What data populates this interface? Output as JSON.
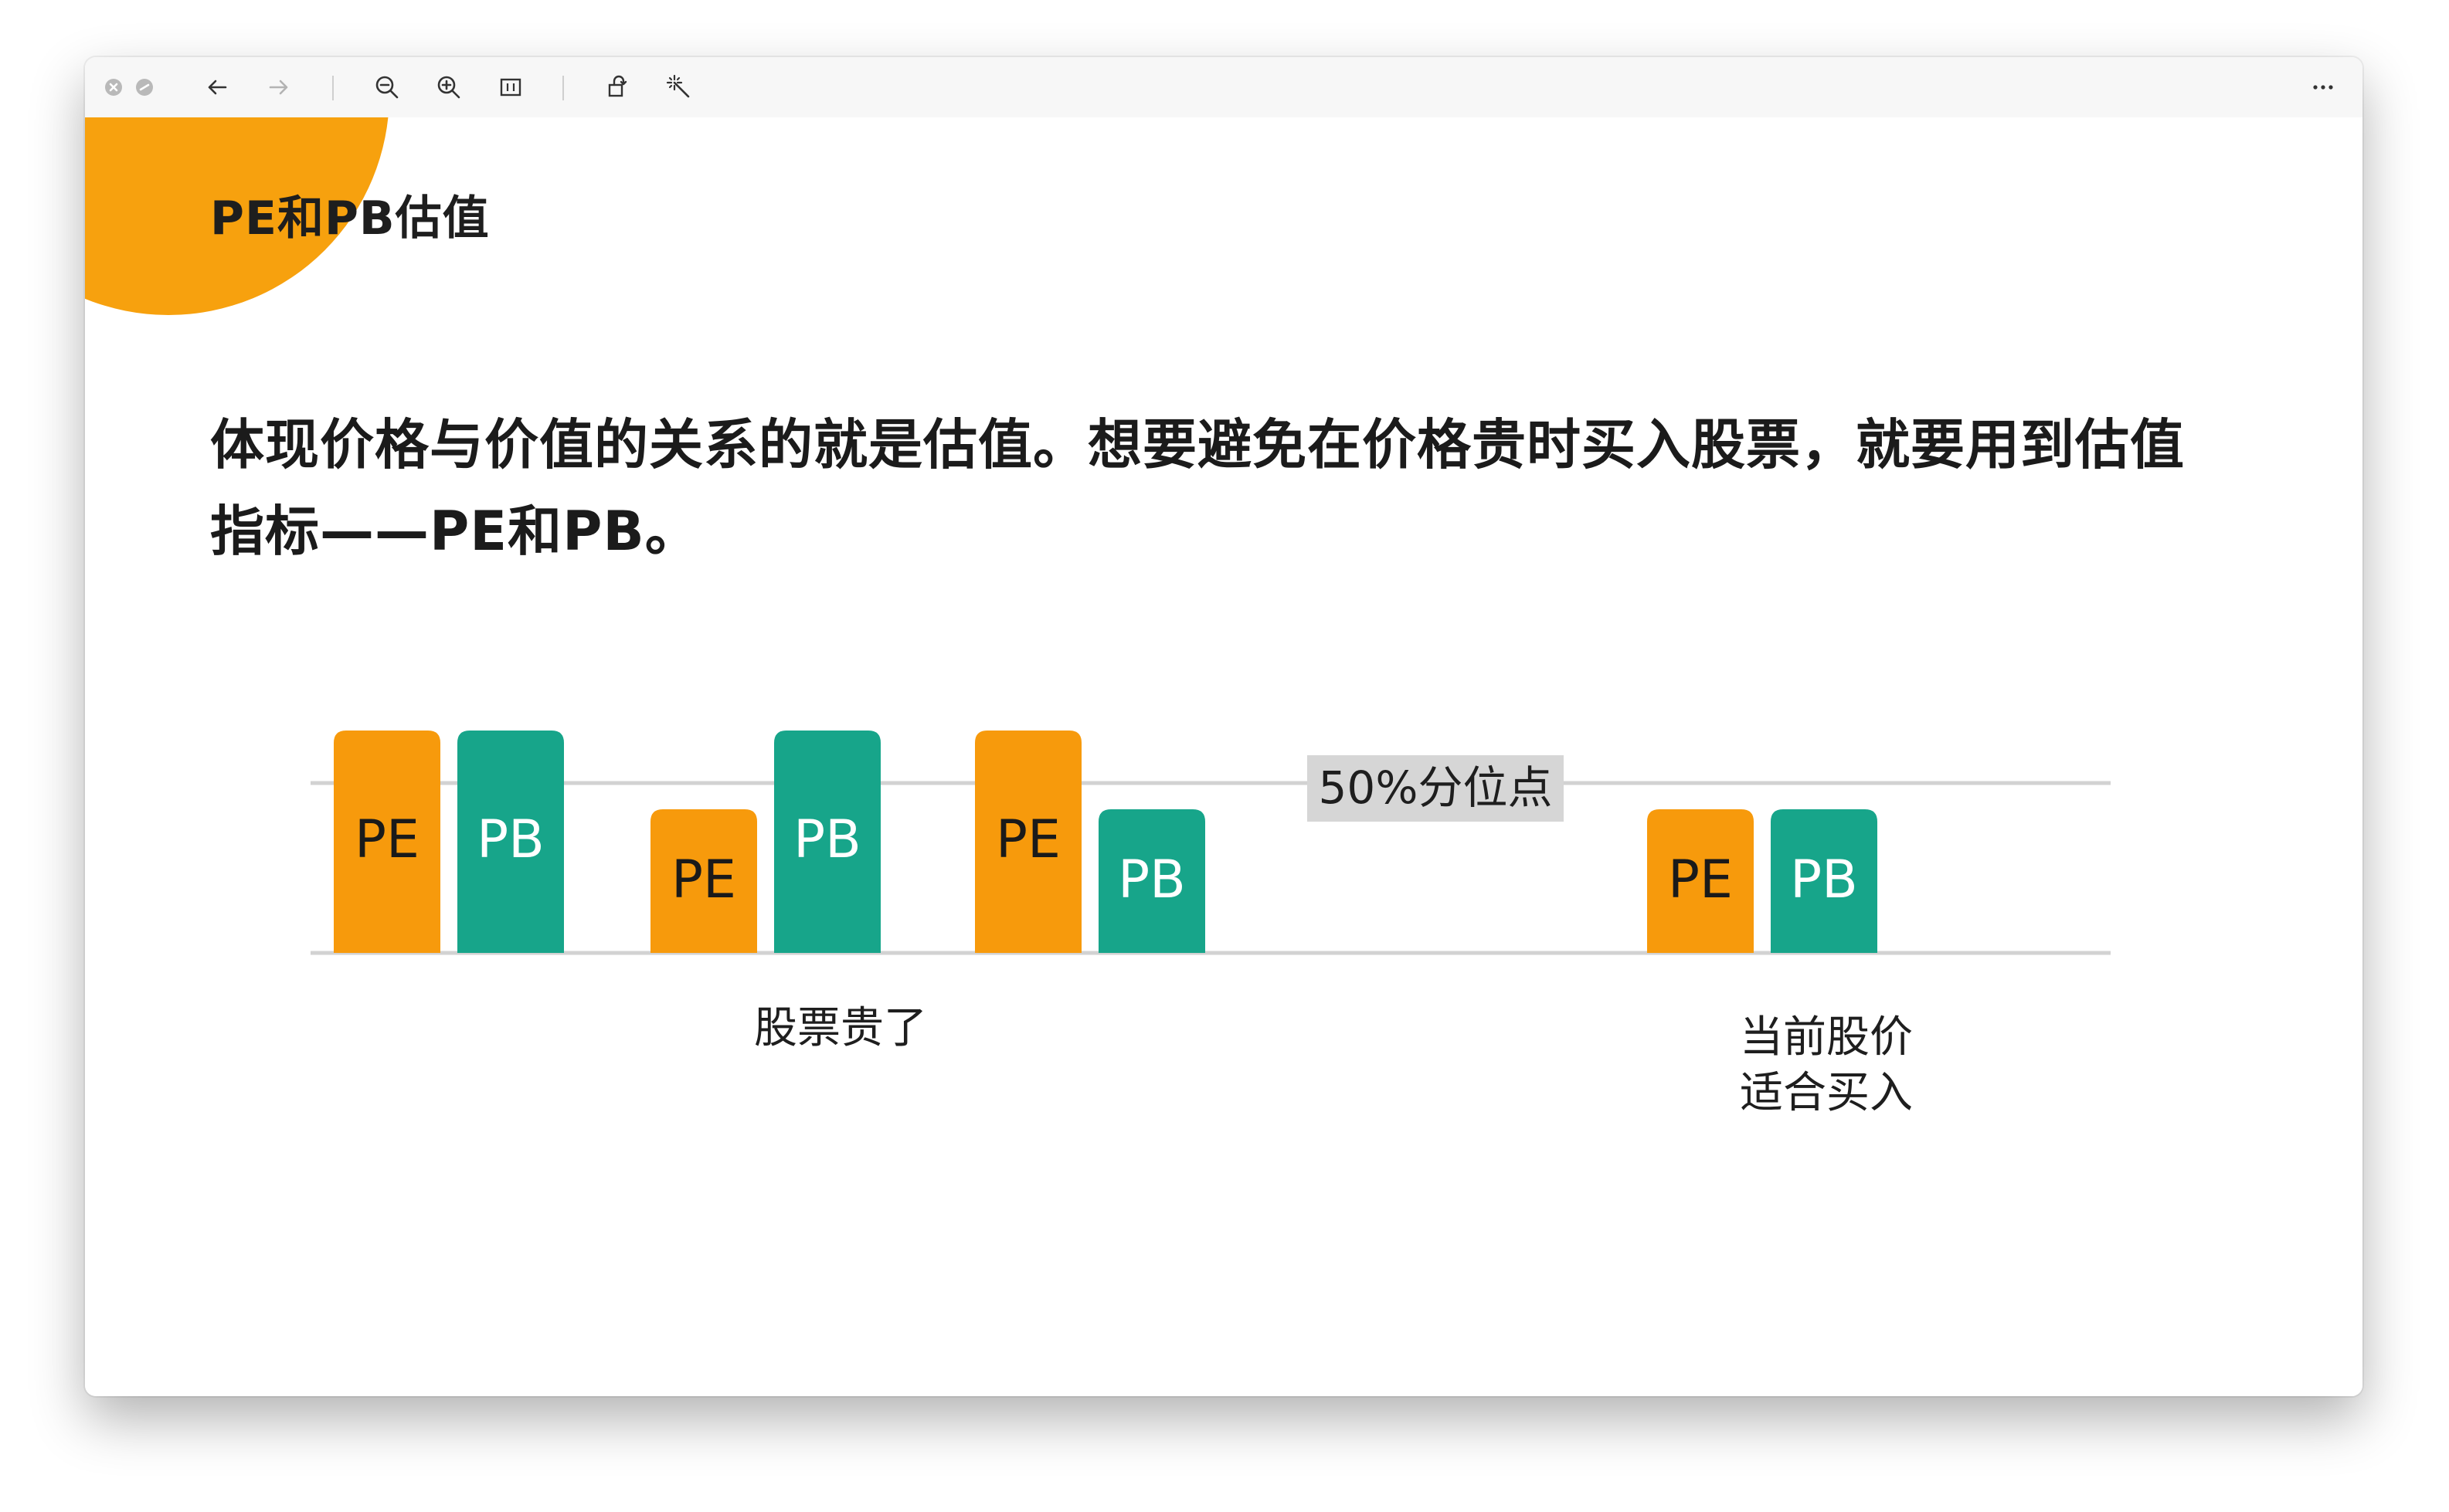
{
  "toolbar": {
    "icons": [
      "close-icon",
      "minimize-icon",
      "back-arrow-icon",
      "forward-arrow-icon",
      "zoom-out-icon",
      "zoom-in-icon",
      "fit-page-icon",
      "rotate-icon",
      "magic-wand-icon",
      "more-icon"
    ]
  },
  "slide": {
    "title": "PE和PB估值",
    "body_line1": "体现价格与价值的关系的就是估值。想要避免在价格贵时买入股票，就要用到估值",
    "body_line2": "指标——PE和PB。",
    "accent_color": "#f7a10e"
  },
  "chart_data": {
    "type": "bar",
    "reference_label": "50%分位点",
    "colors": {
      "PE": "#f79a0c",
      "PB": "#17a58a"
    },
    "groups": [
      {
        "bars": [
          {
            "label": "PE",
            "level": "high"
          },
          {
            "label": "PB",
            "level": "high"
          }
        ]
      },
      {
        "bars": [
          {
            "label": "PE",
            "level": "low"
          },
          {
            "label": "PB",
            "level": "high"
          }
        ]
      },
      {
        "bars": [
          {
            "label": "PE",
            "level": "high"
          },
          {
            "label": "PB",
            "level": "low"
          }
        ]
      },
      {
        "bars": [
          {
            "label": "PE",
            "level": "low"
          },
          {
            "label": "PB",
            "level": "low"
          }
        ]
      }
    ],
    "annotations": [
      {
        "text": "股票贵了"
      },
      {
        "text": "当前股价",
        "text2": "适合买入"
      }
    ]
  }
}
